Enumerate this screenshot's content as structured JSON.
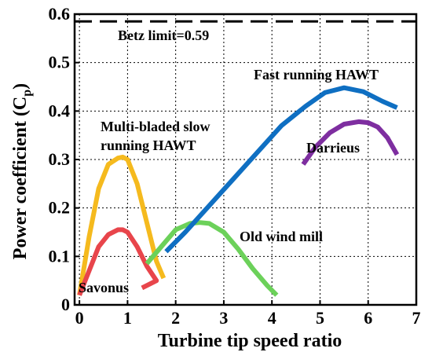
{
  "chart_data": {
    "type": "line",
    "xlabel": "Turbine tip speed ratio",
    "ylabel": "Power coefficient (C",
    "ylabel_sub": "p",
    "ylabel_close": ")",
    "xlim": [
      -0.1,
      7.0
    ],
    "ylim": [
      0,
      0.6
    ],
    "xticks": [
      0,
      1,
      2,
      3,
      4,
      5,
      6,
      7
    ],
    "yticks": [
      0,
      0.1,
      0.2,
      0.3,
      0.4,
      0.5,
      0.6
    ],
    "xtick_labels": [
      "0",
      "1",
      "2",
      "3",
      "4",
      "5",
      "6",
      "7"
    ],
    "ytick_labels": [
      "0",
      "0.1",
      "0.2",
      "0.3",
      "0.4",
      "0.5",
      "0.6"
    ],
    "grid": true,
    "betz": {
      "value": 0.585,
      "label": "Betz limit=0.59"
    },
    "series": [
      {
        "name": "Multi-bladed slow running HAWT",
        "label_lines": [
          "Multi-bladed slow",
          "running HAWT"
        ],
        "color": "#F5BA1E",
        "x": [
          0.0,
          0.2,
          0.4,
          0.6,
          0.8,
          0.9,
          1.0,
          1.2,
          1.4,
          1.6,
          1.75
        ],
        "y": [
          0.02,
          0.14,
          0.24,
          0.29,
          0.303,
          0.305,
          0.3,
          0.25,
          0.17,
          0.09,
          0.055
        ]
      },
      {
        "name": "Savonus",
        "label_lines": [
          "Savonus"
        ],
        "color": "#E8454B",
        "x": [
          0.0,
          0.2,
          0.4,
          0.6,
          0.8,
          0.9,
          1.0,
          1.2,
          1.4,
          1.6,
          1.3
        ],
        "y": [
          0.02,
          0.07,
          0.12,
          0.145,
          0.155,
          0.155,
          0.15,
          0.12,
          0.08,
          0.05,
          0.035
        ]
      },
      {
        "name": "Old wind mill",
        "label_lines": [
          "Old wind mill"
        ],
        "color": "#6CD15A",
        "x": [
          1.4,
          1.7,
          2.0,
          2.3,
          2.5,
          2.7,
          3.0,
          3.3,
          3.6,
          3.9,
          4.1
        ],
        "y": [
          0.085,
          0.12,
          0.155,
          0.168,
          0.17,
          0.168,
          0.15,
          0.115,
          0.075,
          0.04,
          0.02
        ]
      },
      {
        "name": "Fast running HAWT",
        "label_lines": [
          "Fast running HAWT"
        ],
        "color": "#0F6FC2",
        "x": [
          1.8,
          2.2,
          2.7,
          3.2,
          3.7,
          4.2,
          4.7,
          5.1,
          5.5,
          5.9,
          6.3,
          6.6
        ],
        "y": [
          0.11,
          0.15,
          0.205,
          0.26,
          0.315,
          0.37,
          0.41,
          0.438,
          0.448,
          0.44,
          0.42,
          0.407
        ]
      },
      {
        "name": "Darrieus",
        "label_lines": [
          "Darrieus"
        ],
        "color": "#7E2EA0",
        "x": [
          4.65,
          4.9,
          5.2,
          5.5,
          5.8,
          6.0,
          6.2,
          6.4,
          6.6
        ],
        "y": [
          0.29,
          0.325,
          0.355,
          0.373,
          0.378,
          0.376,
          0.367,
          0.345,
          0.31
        ]
      }
    ]
  }
}
